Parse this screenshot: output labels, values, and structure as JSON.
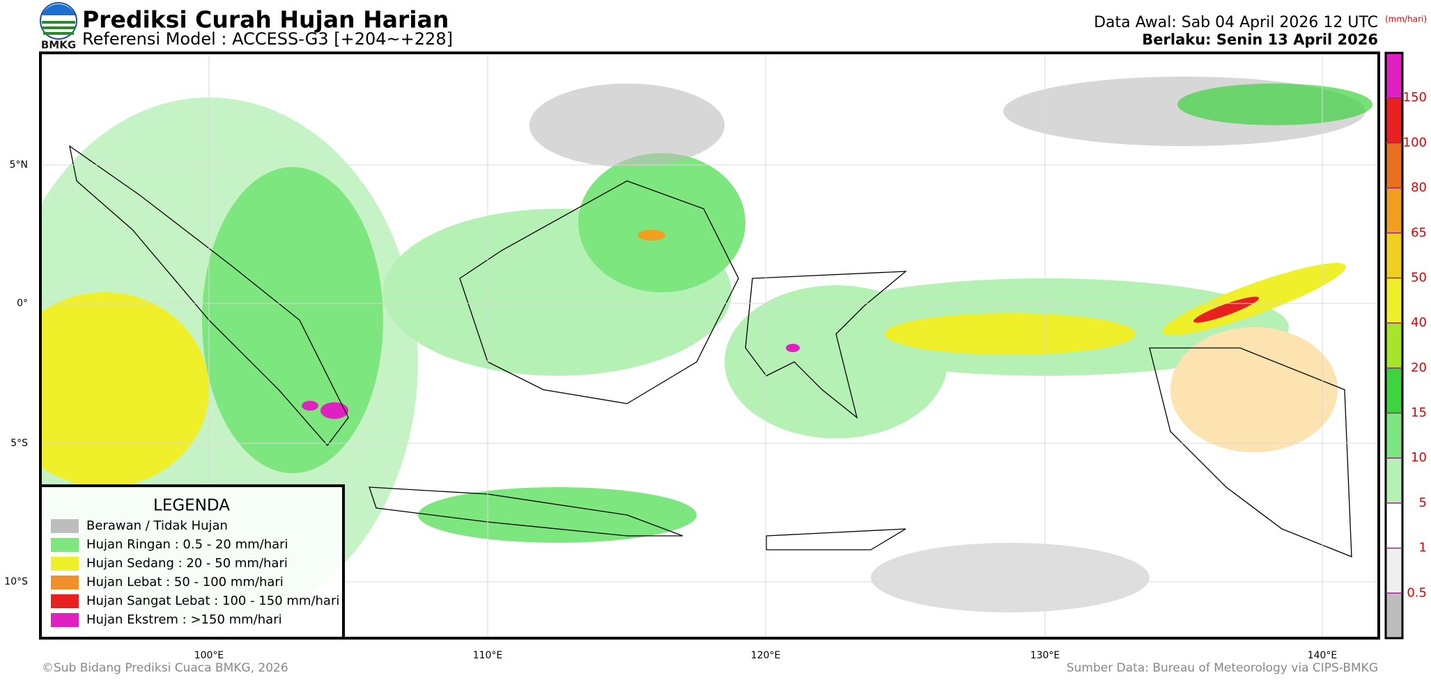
{
  "header": {
    "title": "Prediksi Curah Hujan Harian",
    "subtitle": "Referensi Model : ACCESS-G3 [+204~+228]",
    "logo_text": "BMKG",
    "data_awal": "Data Awal: Sab 04 April 2026 12 UTC",
    "units": "(mm/hari)",
    "berlaku": "Berlaku: Senin 13 April 2026"
  },
  "map": {
    "lat_labels": [
      "5°N",
      "0°",
      "5°S",
      "10°S"
    ],
    "lon_labels": [
      "100°E",
      "110°E",
      "120°E",
      "130°E",
      "140°E"
    ]
  },
  "legend": {
    "title": "LEGENDA",
    "items": [
      {
        "label": "Berawan / Tidak Hujan",
        "color": "#bdbdbd"
      },
      {
        "label": "Hujan Ringan : 0.5 - 20 mm/hari",
        "color": "#7ee67e"
      },
      {
        "label": "Hujan Sedang : 20 - 50 mm/hari",
        "color": "#f0f02a"
      },
      {
        "label": "Hujan Lebat : 50 - 100 mm/hari",
        "color": "#f0902a"
      },
      {
        "label": "Hujan Sangat Lebat : 100 - 150 mm/hari",
        "color": "#e82020"
      },
      {
        "label": "Hujan Ekstrem : >150 mm/hari",
        "color": "#e020c0"
      }
    ]
  },
  "colorbar": {
    "colors": [
      "#bdbdbd",
      "#efefef",
      "#ffffff",
      "#b5f0b5",
      "#7ee67e",
      "#3fd33f",
      "#a6e62a",
      "#f0f02a",
      "#f0d020",
      "#f0a020",
      "#e87020",
      "#e82020",
      "#e020c0"
    ],
    "labels": [
      0.5,
      1,
      5,
      10,
      15,
      20,
      40,
      50,
      65,
      80,
      100,
      150
    ]
  },
  "footer": {
    "left": "©Sub Bidang Prediksi Cuaca BMKG, 2026",
    "right": "Sumber Data: Bureau of Meteorology via CIPS-BMKG"
  }
}
